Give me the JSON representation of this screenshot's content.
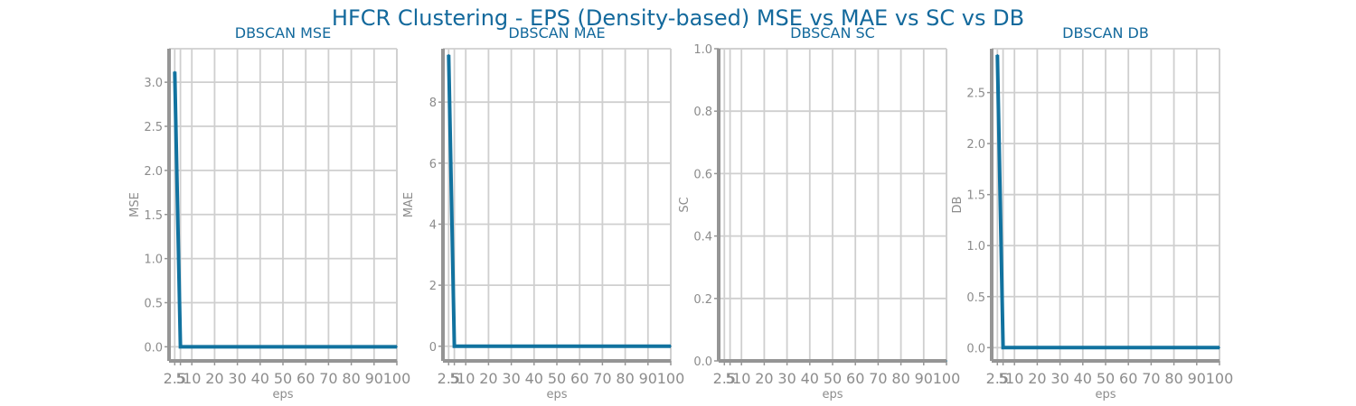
{
  "title": "HFCR Clustering - EPS (Density-based) MSE vs MAE vs SC vs DB",
  "colors": {
    "title": "#13699c",
    "series": "#11729f",
    "axis": "#959595",
    "grid": "#cfcfcf",
    "text": "#8c8c8c"
  },
  "chart_data": [
    {
      "type": "line",
      "title": "DBSCAN MSE",
      "xlabel": "eps",
      "ylabel": "MSE",
      "x": [
        2.5,
        5,
        10,
        20,
        30,
        40,
        50,
        60,
        70,
        80,
        90,
        100
      ],
      "x_tick_labels": [
        "2.5",
        "5",
        "10",
        "20",
        "30",
        "40",
        "50",
        "60",
        "70",
        "80",
        "90",
        "100"
      ],
      "values": [
        3.12,
        0.0,
        0.0,
        0.0,
        0.0,
        0.0,
        0.0,
        0.0,
        0.0,
        0.0,
        0.0,
        0.0
      ],
      "y_ticks": [
        0.0,
        0.5,
        1.0,
        1.5,
        2.0,
        2.5,
        3.0
      ],
      "y_tick_labels": [
        "0.0",
        "0.5",
        "1.0",
        "1.5",
        "2.0",
        "2.5",
        "3.0"
      ],
      "ylim": [
        -0.16,
        3.38
      ],
      "grid": true
    },
    {
      "type": "line",
      "title": "DBSCAN MAE",
      "xlabel": "eps",
      "ylabel": "MAE",
      "x": [
        2.5,
        5,
        10,
        20,
        30,
        40,
        50,
        60,
        70,
        80,
        90,
        100
      ],
      "x_tick_labels": [
        "2.5",
        "5",
        "10",
        "20",
        "30",
        "40",
        "50",
        "60",
        "70",
        "80",
        "90",
        "100"
      ],
      "values": [
        9.55,
        0.0,
        0.0,
        0.0,
        0.0,
        0.0,
        0.0,
        0.0,
        0.0,
        0.0,
        0.0,
        0.0
      ],
      "y_ticks": [
        0,
        2,
        4,
        6,
        8
      ],
      "y_tick_labels": [
        "0",
        "2",
        "4",
        "6",
        "8"
      ],
      "ylim": [
        -0.48,
        9.75
      ],
      "grid": true
    },
    {
      "type": "line",
      "title": "DBSCAN SC",
      "xlabel": "eps",
      "ylabel": "SC",
      "x": [
        2.5,
        5,
        10,
        20,
        30,
        40,
        50,
        60,
        70,
        80,
        90,
        100
      ],
      "x_tick_labels": [
        "2.5",
        "5",
        "10",
        "20",
        "30",
        "40",
        "50",
        "60",
        "70",
        "80",
        "90",
        "100"
      ],
      "values": [
        0.0,
        0.0,
        0.0,
        0.0,
        0.0,
        0.0,
        0.0,
        0.0,
        0.0,
        0.0,
        0.0,
        0.0
      ],
      "y_ticks": [
        0.0,
        0.2,
        0.4,
        0.6,
        0.8,
        1.0
      ],
      "y_tick_labels": [
        "0.0",
        "0.2",
        "0.4",
        "0.6",
        "0.8",
        "1.0"
      ],
      "ylim": [
        0.0,
        1.0
      ],
      "grid": true
    },
    {
      "type": "line",
      "title": "DBSCAN DB",
      "xlabel": "eps",
      "ylabel": "DB",
      "x": [
        2.5,
        5,
        10,
        20,
        30,
        40,
        50,
        60,
        70,
        80,
        90,
        100
      ],
      "x_tick_labels": [
        "2.5",
        "5",
        "10",
        "20",
        "30",
        "40",
        "50",
        "60",
        "70",
        "80",
        "90",
        "100"
      ],
      "values": [
        2.87,
        0.0,
        0.0,
        0.0,
        0.0,
        0.0,
        0.0,
        0.0,
        0.0,
        0.0,
        0.0,
        0.0
      ],
      "y_ticks": [
        0.0,
        0.5,
        1.0,
        1.5,
        2.0,
        2.5
      ],
      "y_tick_labels": [
        "0.0",
        "0.5",
        "1.0",
        "1.5",
        "2.0",
        "2.5"
      ],
      "ylim": [
        -0.13,
        2.93
      ],
      "grid": true
    }
  ]
}
